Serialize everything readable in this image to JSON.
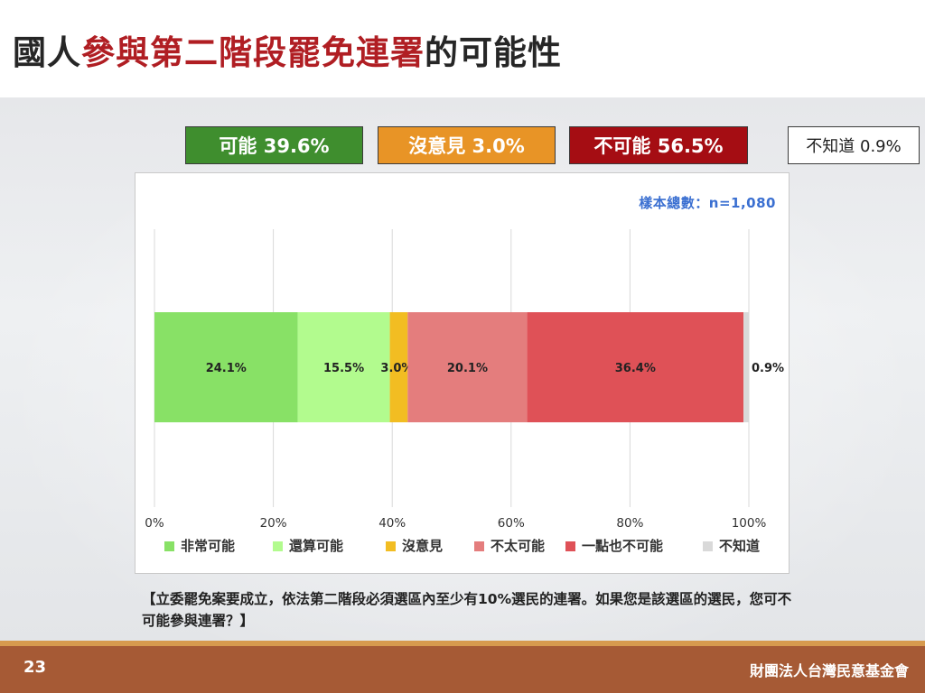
{
  "slide": {
    "title_pre": "國人",
    "title_highlight": "參與第二階段罷免連署",
    "title_post": "的可能性",
    "page_number": "23",
    "organization": "財團法人台灣民意基金會",
    "question": "【立委罷免案要成立，依法第二階段必須選區內至少有10%選民的連署。如果您是該選區的選民，您可不可能參與連署？】"
  },
  "summary": {
    "possible": "可能 39.6%",
    "no_opinion": "沒意見 3.0%",
    "impossible": "不可能 56.5%",
    "unknown": "不知道 0.9%"
  },
  "chart_data": {
    "type": "bar",
    "orientation": "horizontal",
    "stacked": true,
    "sample_note": "樣本總數：n=1,080",
    "categories": [
      ""
    ],
    "series": [
      {
        "name": "非常可能",
        "values": [
          24.1
        ],
        "label": "24.1%",
        "color": "#88e166"
      },
      {
        "name": "還算可能",
        "values": [
          15.5
        ],
        "label": "15.5%",
        "color": "#b2fb8e"
      },
      {
        "name": "沒意見",
        "values": [
          3.0
        ],
        "label": "3.0%",
        "color": "#f2bd22"
      },
      {
        "name": "不太可能",
        "values": [
          20.1
        ],
        "label": "20.1%",
        "color": "#e47d7d"
      },
      {
        "name": "一點也不可能",
        "values": [
          36.4
        ],
        "label": "36.4%",
        "color": "#df5157"
      },
      {
        "name": "不知道",
        "values": [
          0.9
        ],
        "label": "0.9%",
        "color": "#d9d9d9"
      }
    ],
    "xlim": [
      0,
      100
    ],
    "xticks": [
      "0%",
      "20%",
      "40%",
      "60%",
      "80%",
      "100%"
    ],
    "grid": true,
    "legend_position": "bottom"
  }
}
